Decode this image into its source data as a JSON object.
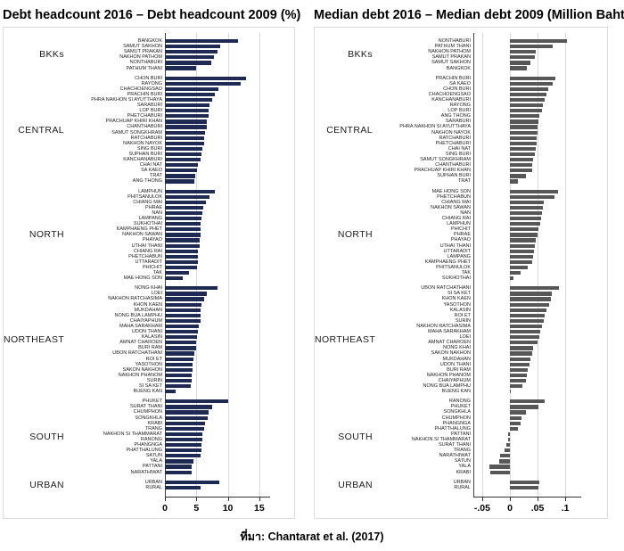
{
  "caption": "ที่มา: Chantarat et al. (2017)",
  "chart_data": [
    {
      "type": "bar",
      "orientation": "horizontal",
      "title": "Debt headcount 2016 – Debt headcount 2009 (%)",
      "unit": "%",
      "bar_color": "#1f2a52",
      "grid": "vertical",
      "xlim": [
        0,
        16.3
      ],
      "xticks": [
        0,
        5,
        10,
        15
      ],
      "xtick_labels": [
        "0",
        "5",
        "10",
        "15"
      ],
      "groups": [
        {
          "region": "BKKs",
          "items": [
            {
              "label": "BANGKOK",
              "value": 11.6
            },
            {
              "label": "SAMUT SAKHON",
              "value": 8.8
            },
            {
              "label": "SAMUT PRAKAN",
              "value": 8.4
            },
            {
              "label": "NAKHON PATHOM",
              "value": 7.8
            },
            {
              "label": "NONTHABURI",
              "value": 7.3
            },
            {
              "label": "PATHUM THANI",
              "value": 5.0
            }
          ]
        },
        {
          "region": "CENTRAL",
          "items": [
            {
              "label": "CHON BURI",
              "value": 12.9
            },
            {
              "label": "RAYONG",
              "value": 12.0
            },
            {
              "label": "CHACHOENGSAO",
              "value": 8.5
            },
            {
              "label": "PRACHIN BURI",
              "value": 7.9
            },
            {
              "label": "PHRA NAKHON SI AYUTTHAYA",
              "value": 7.5
            },
            {
              "label": "SARABURI",
              "value": 7.1
            },
            {
              "label": "LOP BURI",
              "value": 7.0
            },
            {
              "label": "PHETCHABURI",
              "value": 6.9
            },
            {
              "label": "PRACHUAP KHIRI KHAN",
              "value": 6.7
            },
            {
              "label": "CHANTHABURI",
              "value": 6.6
            },
            {
              "label": "SAMUT SONGKHRAM",
              "value": 6.4
            },
            {
              "label": "RATCHABURI",
              "value": 6.3
            },
            {
              "label": "NAKHON NAYOK",
              "value": 6.2
            },
            {
              "label": "SING BURI",
              "value": 6.0
            },
            {
              "label": "SUPHAN BURI",
              "value": 5.8
            },
            {
              "label": "KANCHANABURI",
              "value": 5.6
            },
            {
              "label": "CHAI NAT",
              "value": 5.3
            },
            {
              "label": "SA KAEO",
              "value": 5.1
            },
            {
              "label": "TRAT",
              "value": 4.8
            },
            {
              "label": "ANG THONG",
              "value": 4.7
            }
          ]
        },
        {
          "region": "NORTH",
          "items": [
            {
              "label": "LAMPHUN",
              "value": 7.9
            },
            {
              "label": "PHITSANULOK",
              "value": 7.1
            },
            {
              "label": "CHIANG MAI",
              "value": 6.5
            },
            {
              "label": "PHRAE",
              "value": 6.1
            },
            {
              "label": "NAN",
              "value": 5.9
            },
            {
              "label": "LAMPANG",
              "value": 5.8
            },
            {
              "label": "SUKHOTHAI",
              "value": 5.7
            },
            {
              "label": "KAMPHAENG PHET",
              "value": 5.6
            },
            {
              "label": "NAKHON SAWAN",
              "value": 5.6
            },
            {
              "label": "PHAYAO",
              "value": 5.5
            },
            {
              "label": "UTHAI THANI",
              "value": 5.5
            },
            {
              "label": "CHIANG RAI",
              "value": 5.3
            },
            {
              "label": "PHETCHABUN",
              "value": 5.2
            },
            {
              "label": "UTTARADIT",
              "value": 5.2
            },
            {
              "label": "PHICHIT",
              "value": 5.1
            },
            {
              "label": "TAK",
              "value": 3.8
            },
            {
              "label": "MAE HONG SON",
              "value": 2.8
            }
          ]
        },
        {
          "region": "NORTHEAST",
          "items": [
            {
              "label": "NONG KHAI",
              "value": 8.3
            },
            {
              "label": "LOEI",
              "value": 6.6
            },
            {
              "label": "NAKHON RATCHASIMA",
              "value": 6.2
            },
            {
              "label": "KHON KAEN",
              "value": 5.8
            },
            {
              "label": "MUKDAHAN",
              "value": 5.7
            },
            {
              "label": "NONG BUA LAMPHU",
              "value": 5.6
            },
            {
              "label": "CHAIYAPHUM",
              "value": 5.6
            },
            {
              "label": "MAHA SARAKHAM",
              "value": 5.4
            },
            {
              "label": "UDON THANI",
              "value": 5.3
            },
            {
              "label": "KALASIN",
              "value": 5.1
            },
            {
              "label": "AMNAT CHAROEN",
              "value": 4.9
            },
            {
              "label": "BURI RAM",
              "value": 4.9
            },
            {
              "label": "UBON RATCHATHANI",
              "value": 4.7
            },
            {
              "label": "ROI ET",
              "value": 4.5
            },
            {
              "label": "YASOTHON",
              "value": 4.4
            },
            {
              "label": "SAKON NAKHON",
              "value": 4.4
            },
            {
              "label": "NAKHON PHANOM",
              "value": 4.2
            },
            {
              "label": "SURIN",
              "value": 4.2
            },
            {
              "label": "SI SA KET",
              "value": 4.1
            },
            {
              "label": "BUENG KAN",
              "value": 1.7
            }
          ]
        },
        {
          "region": "SOUTH",
          "items": [
            {
              "label": "PHUKET",
              "value": 10.0
            },
            {
              "label": "SURAT THANI",
              "value": 7.5
            },
            {
              "label": "CHUMPHON",
              "value": 7.0
            },
            {
              "label": "SONGKHLA",
              "value": 6.8
            },
            {
              "label": "KRABI",
              "value": 6.4
            },
            {
              "label": "TRANG",
              "value": 6.3
            },
            {
              "label": "NAKHON SI THAMMARAT",
              "value": 6.0
            },
            {
              "label": "RANONG",
              "value": 6.0
            },
            {
              "label": "PHANGNGA",
              "value": 5.8
            },
            {
              "label": "PHATTHALUNG",
              "value": 5.8
            },
            {
              "label": "SATUN",
              "value": 5.7
            },
            {
              "label": "YALA",
              "value": 4.6
            },
            {
              "label": "PATTANI",
              "value": 4.3
            },
            {
              "label": "NARATHIWAT",
              "value": 4.2
            }
          ]
        },
        {
          "region": "URBAN",
          "items": [
            {
              "label": "URBAN",
              "value": 8.6
            },
            {
              "label": "RURAL",
              "value": 5.6
            }
          ]
        }
      ]
    },
    {
      "type": "bar",
      "orientation": "horizontal",
      "title": "Median debt 2016 – Median debt 2009 (Million Baht)",
      "unit": "Million Baht",
      "bar_color": "#575757",
      "grid": "vertical",
      "xlim": [
        -0.066,
        0.124
      ],
      "xticks": [
        -0.05,
        0,
        0.05,
        0.1
      ],
      "xtick_labels": [
        "-.05",
        "0",
        ".05",
        ".1"
      ],
      "groups": [
        {
          "region": "BKKs",
          "items": [
            {
              "label": "NONTHABURI",
              "value": 0.103
            },
            {
              "label": "PATHUM THANI",
              "value": 0.077
            },
            {
              "label": "NAKHON PATHOM",
              "value": 0.047
            },
            {
              "label": "SAMUT PRAKAN",
              "value": 0.045
            },
            {
              "label": "SAMUT SAKHON",
              "value": 0.037
            },
            {
              "label": "BANGKOK",
              "value": 0.031
            }
          ]
        },
        {
          "region": "CENTRAL",
          "items": [
            {
              "label": "PRACHIN BURI",
              "value": 0.082
            },
            {
              "label": "SA KAEO",
              "value": 0.077
            },
            {
              "label": "CHON BURI",
              "value": 0.069
            },
            {
              "label": "CHACHOENGSAO",
              "value": 0.066
            },
            {
              "label": "KANCHANABURI",
              "value": 0.063
            },
            {
              "label": "RAYONG",
              "value": 0.059
            },
            {
              "label": "LOP BURI",
              "value": 0.058
            },
            {
              "label": "ANG THONG",
              "value": 0.053
            },
            {
              "label": "SARABURI",
              "value": 0.051
            },
            {
              "label": "PHRA NAKHON SI AYUTTHAYA",
              "value": 0.05
            },
            {
              "label": "NAKHON NAYOK",
              "value": 0.05
            },
            {
              "label": "RATCHABURI",
              "value": 0.049
            },
            {
              "label": "PHETCHABURI",
              "value": 0.048
            },
            {
              "label": "CHAI NAT",
              "value": 0.046
            },
            {
              "label": "SING BURI",
              "value": 0.045
            },
            {
              "label": "SAMUT SONGKHRAM",
              "value": 0.042
            },
            {
              "label": "CHANTHABURI",
              "value": 0.041
            },
            {
              "label": "PRACHUAP KHIRI KHAN",
              "value": 0.04
            },
            {
              "label": "SUPHAN BURI",
              "value": 0.029
            },
            {
              "label": "TRAT",
              "value": 0.015
            }
          ]
        },
        {
          "region": "NORTH",
          "items": [
            {
              "label": "MAE HONG SON",
              "value": 0.087
            },
            {
              "label": "PHETCHABUN",
              "value": 0.08
            },
            {
              "label": "CHIANG MAI",
              "value": 0.062
            },
            {
              "label": "NAKHON SAWAN",
              "value": 0.06
            },
            {
              "label": "NAN",
              "value": 0.058
            },
            {
              "label": "CHIANG RAI",
              "value": 0.057
            },
            {
              "label": "LAMPHUN",
              "value": 0.054
            },
            {
              "label": "PHICHIT",
              "value": 0.051
            },
            {
              "label": "PHRAE",
              "value": 0.05
            },
            {
              "label": "PHAYAO",
              "value": 0.047
            },
            {
              "label": "UTHAI THANI",
              "value": 0.045
            },
            {
              "label": "UTTARADIT",
              "value": 0.043
            },
            {
              "label": "LAMPANG",
              "value": 0.042
            },
            {
              "label": "KAMPHAENG PHET",
              "value": 0.04
            },
            {
              "label": "PHITSANULOK",
              "value": 0.032
            },
            {
              "label": "TAK",
              "value": 0.02
            },
            {
              "label": "SUKHOTHAI",
              "value": 0.007
            }
          ]
        },
        {
          "region": "NORTHEAST",
          "items": [
            {
              "label": "UBON RATCHATHANI",
              "value": 0.088
            },
            {
              "label": "SI SA KET",
              "value": 0.075
            },
            {
              "label": "KHON KAEN",
              "value": 0.074
            },
            {
              "label": "YASOTHON",
              "value": 0.071
            },
            {
              "label": "KALASIN",
              "value": 0.066
            },
            {
              "label": "ROI ET",
              "value": 0.063
            },
            {
              "label": "SURIN",
              "value": 0.061
            },
            {
              "label": "NAKHON RATCHASIMA",
              "value": 0.058
            },
            {
              "label": "MAHA SARAKHAM",
              "value": 0.055
            },
            {
              "label": "LOEI",
              "value": 0.053
            },
            {
              "label": "AMNAT CHAROEN",
              "value": 0.05
            },
            {
              "label": "NONG KHAI",
              "value": 0.042
            },
            {
              "label": "SAKON NAKHON",
              "value": 0.04
            },
            {
              "label": "MUKDAHAN",
              "value": 0.037
            },
            {
              "label": "UDON THANI",
              "value": 0.035
            },
            {
              "label": "BURI RAM",
              "value": 0.032
            },
            {
              "label": "NAKHON PHANOM",
              "value": 0.03
            },
            {
              "label": "CHAIYAPHUM",
              "value": 0.029
            },
            {
              "label": "NONG BUA LAMPHU",
              "value": 0.023
            },
            {
              "label": "BUENG KAN",
              "value": 0.002
            }
          ]
        },
        {
          "region": "SOUTH",
          "items": [
            {
              "label": "RANONG",
              "value": 0.063
            },
            {
              "label": "PHUKET",
              "value": 0.051
            },
            {
              "label": "SONGKHLA",
              "value": 0.029
            },
            {
              "label": "CHUMPHON",
              "value": 0.021
            },
            {
              "label": "PHANGNGA",
              "value": 0.02
            },
            {
              "label": "PHATTHALUNG",
              "value": 0.015
            },
            {
              "label": "PATTANI",
              "value": -0.004
            },
            {
              "label": "NAKHON SI THAMMARAT",
              "value": -0.004
            },
            {
              "label": "SURAT THANI",
              "value": -0.006
            },
            {
              "label": "TRANG",
              "value": -0.01
            },
            {
              "label": "NARATHIWAT",
              "value": -0.017
            },
            {
              "label": "SATUN",
              "value": -0.02
            },
            {
              "label": "YALA",
              "value": -0.037
            },
            {
              "label": "KRABI",
              "value": -0.035
            }
          ]
        },
        {
          "region": "URBAN",
          "items": [
            {
              "label": "URBAN",
              "value": 0.053
            },
            {
              "label": "RURAL",
              "value": 0.051
            }
          ]
        }
      ]
    }
  ]
}
